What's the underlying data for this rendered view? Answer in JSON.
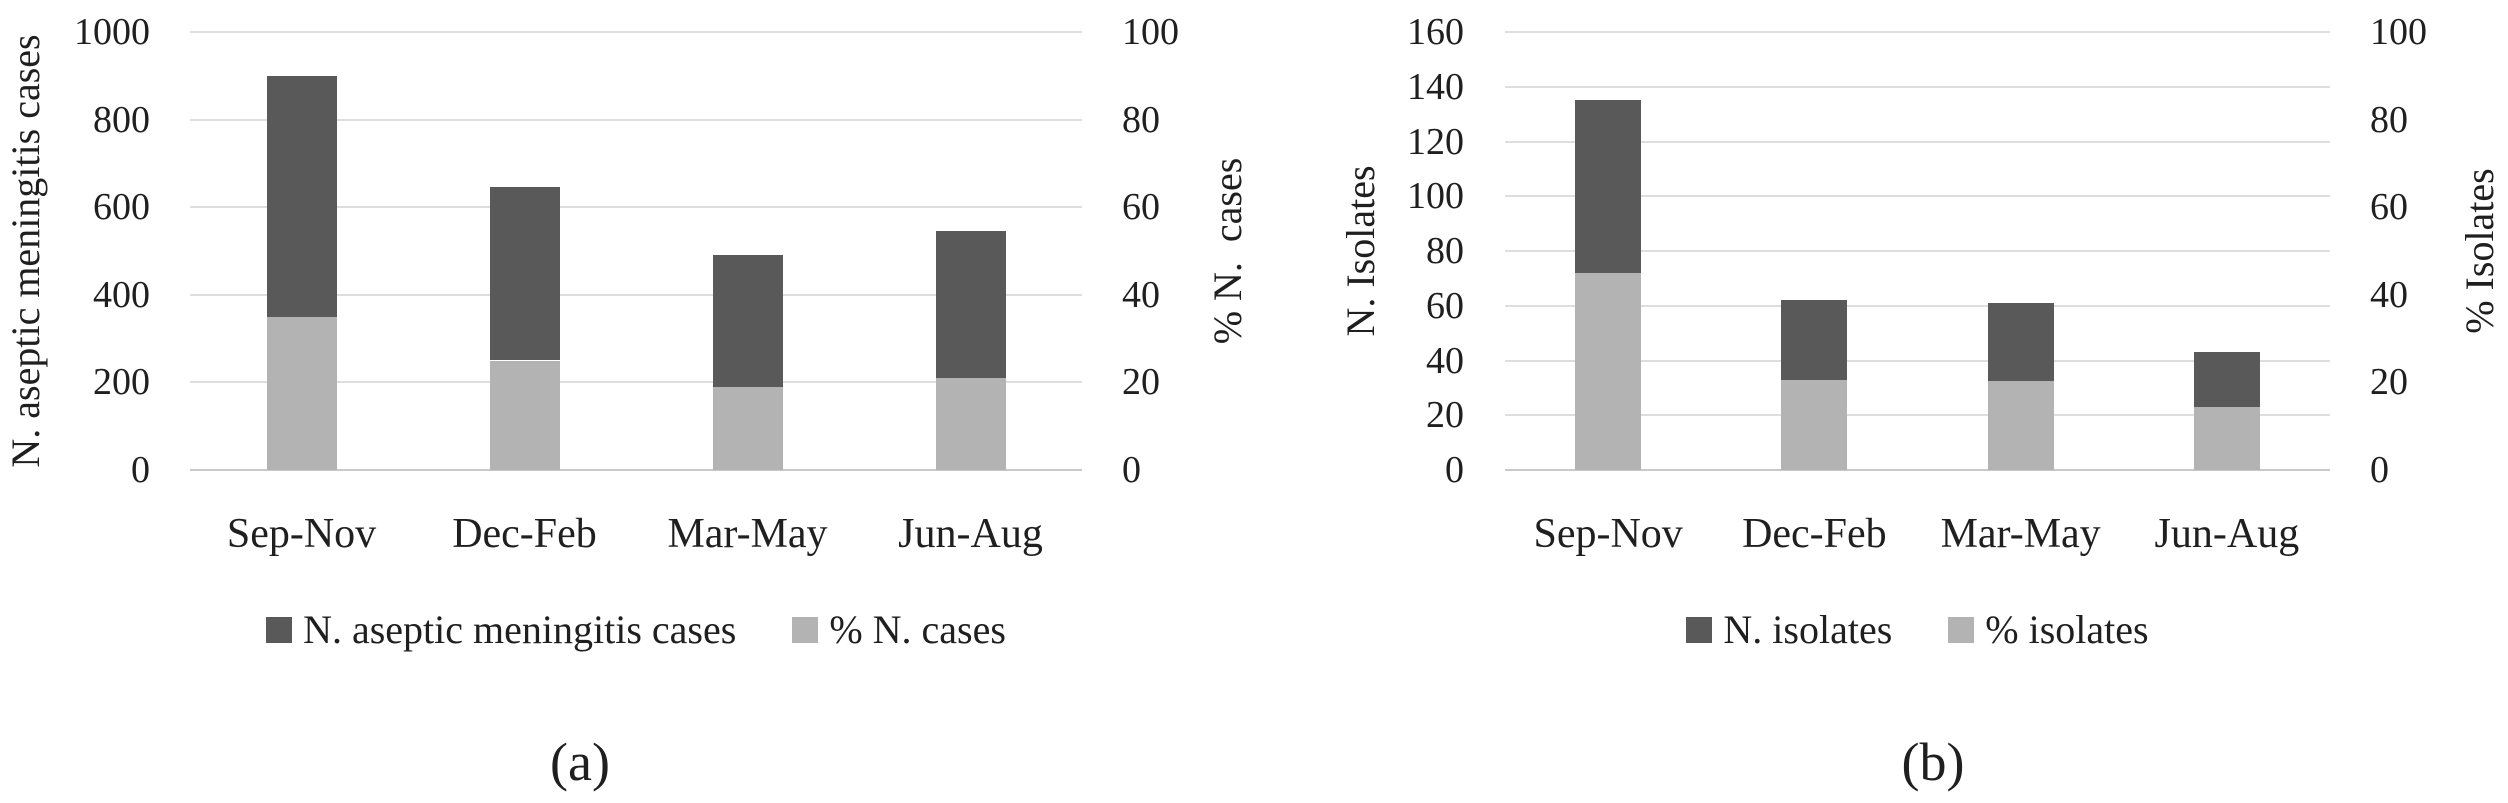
{
  "style": {
    "background": "#ffffff",
    "text_color": "#1f1f1f",
    "gridline_color": "#dedede",
    "axis_line_color": "#c9c9c9",
    "dark_bar_color": "#595959",
    "light_bar_color": "#b3b3b3"
  },
  "chart_data": [
    {
      "type": "bar",
      "subtype": "stacked_dual_axis_column",
      "caption": "(a)",
      "categories": [
        "Sep-Nov",
        "Dec-Feb",
        "Mar-May",
        "Jun-Aug"
      ],
      "left_axis": {
        "title": "N. aseptic meningitis cases",
        "min": 0,
        "max": 1000,
        "ticks": [
          1000,
          800,
          600,
          400,
          200,
          0
        ]
      },
      "right_axis": {
        "title": "% N.  cases",
        "min": 0,
        "max": 100,
        "ticks": [
          100,
          80,
          60,
          40,
          20,
          0
        ]
      },
      "series": [
        {
          "name": "N. aseptic meningitis cases",
          "role": "column_total",
          "axis": "left",
          "color": "#595959",
          "values": [
            900,
            645,
            490,
            545
          ]
        },
        {
          "name": "% N. cases",
          "role": "column_bottom_segment",
          "axis": "right",
          "color": "#b3b3b3",
          "values": [
            34.9,
            25.0,
            19.0,
            21.1
          ]
        }
      ],
      "legend": {
        "position": "bottom",
        "entries": [
          "N. aseptic meningitis cases",
          "% N. cases"
        ]
      },
      "grid": true
    },
    {
      "type": "bar",
      "subtype": "stacked_dual_axis_column",
      "caption": "(b)",
      "categories": [
        "Sep-Nov",
        "Dec-Feb",
        "Mar-May",
        "Jun-Aug"
      ],
      "left_axis": {
        "title": "N. Isolates",
        "min": 0,
        "max": 160,
        "ticks": [
          160,
          140,
          120,
          100,
          80,
          60,
          40,
          20,
          0
        ]
      },
      "right_axis": {
        "title": "% Isolates",
        "min": 0,
        "max": 100,
        "ticks": [
          100,
          80,
          60,
          40,
          20,
          0
        ]
      },
      "series": [
        {
          "name": "N. isolates",
          "role": "column_total",
          "axis": "left",
          "color": "#595959",
          "values": [
            135,
            62,
            61,
            43
          ]
        },
        {
          "name": "% isolates",
          "role": "column_bottom_segment",
          "axis": "right",
          "color": "#b3b3b3",
          "values": [
            44.9,
            20.6,
            20.3,
            14.3
          ]
        }
      ],
      "legend": {
        "position": "bottom",
        "entries": [
          "N. isolates",
          "% isolates"
        ]
      },
      "grid": true
    }
  ]
}
